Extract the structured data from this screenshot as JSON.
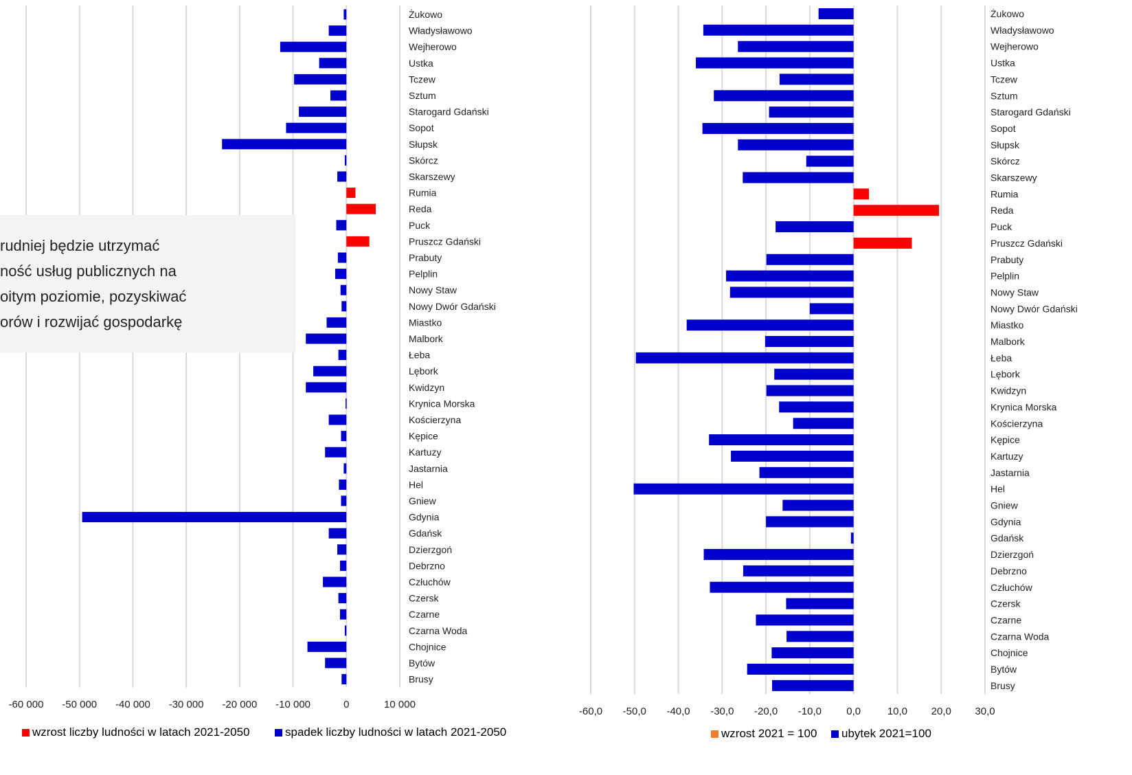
{
  "note": {
    "lines": [
      "rudniej będzie utrzymać",
      "ność usług publicznych na",
      "oitym poziomie, pozyskiwać",
      "orów i rozwijać gospodarkę"
    ]
  },
  "colors": {
    "increase": "#ff0000",
    "decrease": "#0000cc",
    "increase_right": "#ff0000",
    "legend_increase_right": "#ed7d31",
    "grid": "#d9d9d9"
  },
  "legend_left": {
    "increase": "wzrost liczby ludności w latach 2021-2050",
    "decrease": "spadek liczby ludności w latach 2021-2050"
  },
  "legend_right": {
    "increase": "wzrost 2021 = 100",
    "decrease": "ubytek 2021=100"
  },
  "chart_data": [
    {
      "type": "bar",
      "orientation": "horizontal",
      "categories": [
        "Żukowo",
        "Władysławowo",
        "Wejherowo",
        "Ustka",
        "Tczew",
        "Sztum",
        "Starogard Gdański",
        "Sopot",
        "Słupsk",
        "Skórcz",
        "Skarszewy",
        "Rumia",
        "Reda",
        "Puck",
        "Pruszcz Gdański",
        "Prabuty",
        "Pelplin",
        "Nowy Staw",
        "Nowy Dwór Gdański",
        "Miastko",
        "Malbork",
        "Łeba",
        "Lębork",
        "Kwidzyn",
        "Krynica Morska",
        "Kościerzyna",
        "Kępice",
        "Kartuzy",
        "Jastarnia",
        "Hel",
        "Gniew",
        "Gdynia",
        "Gdańsk",
        "Dzierzgoń",
        "Debrzno",
        "Człuchów",
        "Czersk",
        "Czarne",
        "Czarna Woda",
        "Chojnice",
        "Bytów",
        "Brusy"
      ],
      "values": [
        -500,
        -3300,
        -12400,
        -5100,
        -9800,
        -3000,
        -8900,
        -11300,
        -23300,
        -300,
        -1700,
        1700,
        5500,
        -1900,
        4300,
        -1600,
        -2100,
        -1100,
        -900,
        -3700,
        -7600,
        -1500,
        -6200,
        -7600,
        -150,
        -3300,
        -1000,
        -4000,
        -500,
        -1400,
        -1000,
        -49500,
        -3300,
        -1700,
        -1200,
        -4400,
        -1500,
        -1200,
        -300,
        -7300,
        -4000,
        -900
      ],
      "xlim": [
        -60000,
        10000
      ],
      "xticks": [
        "-60 000",
        "-50 000",
        "-40 000",
        "-30 000",
        "-20 000",
        "-10 000",
        "0",
        "10 000"
      ],
      "xtick_values": [
        -60000,
        -50000,
        -40000,
        -30000,
        -20000,
        -10000,
        0,
        10000
      ],
      "grid": true
    },
    {
      "type": "bar",
      "orientation": "horizontal",
      "categories": [
        "Żukowo",
        "Władysławowo",
        "Wejherowo",
        "Ustka",
        "Tczew",
        "Sztum",
        "Starogard Gdański",
        "Sopot",
        "Słupsk",
        "Skórcz",
        "Skarszewy",
        "Rumia",
        "Reda",
        "Puck",
        "Pruszcz Gdański",
        "Prabuty",
        "Pelplin",
        "Nowy Staw",
        "Nowy Dwór Gdański",
        "Miastko",
        "Malbork",
        "Łeba",
        "Lębork",
        "Kwidzyn",
        "Krynica Morska",
        "Kościerzyna",
        "Kępice",
        "Kartuzy",
        "Jastarnia",
        "Hel",
        "Gniew",
        "Gdynia",
        "Gdańsk",
        "Dzierzgoń",
        "Debrzno",
        "Człuchów",
        "Czersk",
        "Czarne",
        "Czarna Woda",
        "Chojnice",
        "Bytów",
        "Brusy"
      ],
      "values": [
        -8.0,
        -34.3,
        -26.4,
        -36.0,
        -16.9,
        -31.9,
        -19.3,
        -34.5,
        -26.4,
        -10.8,
        -25.3,
        3.5,
        19.5,
        -17.8,
        13.3,
        -19.9,
        -29.1,
        -28.2,
        -10.0,
        -38.1,
        -20.2,
        -49.7,
        -18.1,
        -19.9,
        -17.0,
        -13.8,
        -33.0,
        -28.0,
        -21.5,
        -50.2,
        -16.2,
        -20.0,
        -0.6,
        -34.2,
        -25.2,
        -32.8,
        -15.4,
        -22.3,
        -15.3,
        -18.7,
        -24.3,
        -18.6
      ],
      "xlim": [
        -60,
        30
      ],
      "xticks": [
        "-60,0",
        "-50,0",
        "-40,0",
        "-30,0",
        "-20,0",
        "-10,0",
        "0,0",
        "10,0",
        "20,0",
        "30,0"
      ],
      "xtick_values": [
        -60,
        -50,
        -40,
        -30,
        -20,
        -10,
        0,
        10,
        20,
        30
      ],
      "grid": true
    }
  ]
}
